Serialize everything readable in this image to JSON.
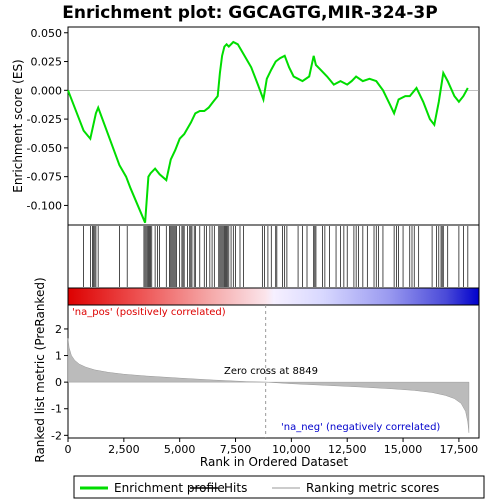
{
  "chart_data": {
    "type": "line",
    "title": "Enrichment plot: GGCAGTG,MIR-324-3P",
    "top_panel": {
      "ylabel": "Enrichment score (ES)",
      "ylim": [
        -0.117,
        0.055
      ],
      "yticks": [
        0.05,
        0.025,
        0.0,
        -0.025,
        -0.05,
        -0.075,
        -0.1
      ],
      "ytick_labels": [
        "0.050",
        "0.025",
        "0.000",
        "-0.025",
        "-0.050",
        "-0.075",
        "-0.100"
      ],
      "series": [
        {
          "name": "Enrichment profile",
          "color": "#00dd00",
          "x": [
            0,
            700,
            1000,
            1250,
            1350,
            2300,
            2600,
            2800,
            3450,
            3600,
            3700,
            3900,
            4100,
            4400,
            4600,
            4800,
            5000,
            5200,
            5500,
            5700,
            5900,
            6100,
            6300,
            6500,
            6700,
            6800,
            6900,
            7000,
            7100,
            7200,
            7400,
            7600,
            7900,
            8200,
            8500,
            8750,
            8900,
            9100,
            9300,
            9500,
            9700,
            9900,
            10100,
            10300,
            10500,
            10800,
            11000,
            11100,
            11300,
            11600,
            11900,
            12200,
            12500,
            12700,
            12900,
            13200,
            13500,
            13800,
            14100,
            14400,
            14600,
            14800,
            15100,
            15300,
            15600,
            15900,
            16200,
            16400,
            16600,
            16800,
            17000,
            17300,
            17500,
            17700,
            17900
          ],
          "y": [
            0.0,
            -0.035,
            -0.042,
            -0.02,
            -0.015,
            -0.065,
            -0.075,
            -0.085,
            -0.115,
            -0.075,
            -0.072,
            -0.068,
            -0.073,
            -0.078,
            -0.06,
            -0.052,
            -0.042,
            -0.038,
            -0.028,
            -0.02,
            -0.018,
            -0.018,
            -0.015,
            -0.01,
            -0.005,
            0.015,
            0.03,
            0.038,
            0.04,
            0.038,
            0.042,
            0.04,
            0.03,
            0.02,
            0.005,
            -0.008,
            0.01,
            0.018,
            0.025,
            0.028,
            0.03,
            0.02,
            0.012,
            0.01,
            0.008,
            0.012,
            0.03,
            0.022,
            0.018,
            0.012,
            0.005,
            0.008,
            0.005,
            0.008,
            0.012,
            0.008,
            0.01,
            0.008,
            0.0,
            -0.012,
            -0.02,
            -0.008,
            -0.005,
            -0.005,
            0.002,
            -0.01,
            -0.025,
            -0.03,
            -0.01,
            0.015,
            0.008,
            -0.005,
            -0.01,
            -0.005,
            0.002
          ]
        }
      ]
    },
    "hits": [
      700,
      1000,
      1100,
      1150,
      1200,
      1250,
      1350,
      2300,
      2650,
      3400,
      3450,
      3500,
      3550,
      3600,
      3650,
      3700,
      3750,
      3900,
      4000,
      4100,
      4400,
      4550,
      4600,
      4650,
      4700,
      4750,
      4800,
      4850,
      5000,
      5100,
      5150,
      5200,
      5350,
      5450,
      5500,
      5550,
      5650,
      5700,
      5900,
      6100,
      6200,
      6350,
      6450,
      6550,
      6750,
      6800,
      6850,
      6900,
      6950,
      7000,
      7050,
      7100,
      7150,
      7200,
      7300,
      7400,
      7500,
      7700,
      7850,
      8700,
      8800,
      8950,
      9100,
      9300,
      9350,
      9600,
      9700,
      9800,
      10300,
      10500,
      10700,
      11000,
      11050,
      11100,
      11400,
      11500,
      11700,
      12000,
      12200,
      12350,
      12500,
      12800,
      12900,
      13000,
      13200,
      13400,
      13700,
      13800,
      13900,
      14100,
      14600,
      14700,
      14800,
      15000,
      15300,
      15400,
      15500,
      15700,
      16300,
      16500,
      16600,
      16700,
      16750,
      16800,
      17000,
      17500,
      17700,
      17900
    ],
    "bottom_panel": {
      "ylabel": "Ranked list metric (PreRanked)",
      "xlabel": "Rank in Ordered Dataset",
      "ylim": [
        -2.1,
        2.9
      ],
      "yticks": [
        2,
        1,
        0,
        -1,
        -2
      ],
      "ytick_labels": [
        "2",
        "1",
        "0",
        "-1",
        "-2"
      ],
      "metric_curve": {
        "x": [
          0,
          50,
          150,
          300,
          500,
          800,
          1200,
          1800,
          2500,
          3500,
          5000,
          6500,
          8000,
          8849,
          10000,
          11500,
          13000,
          14500,
          15500,
          16300,
          16900,
          17300,
          17600,
          17800,
          17900,
          17950
        ],
        "y": [
          1.65,
          1.3,
          1.0,
          0.82,
          0.68,
          0.56,
          0.46,
          0.37,
          0.3,
          0.23,
          0.15,
          0.08,
          0.02,
          0.0,
          -0.06,
          -0.12,
          -0.18,
          -0.25,
          -0.31,
          -0.39,
          -0.5,
          -0.62,
          -0.8,
          -1.1,
          -1.5,
          -1.9
        ]
      },
      "zero_cross_label": "Zero cross at 8849",
      "zero_cross": 8849,
      "pos_label": "'na_pos' (positively correlated)",
      "neg_label": "'na_neg' (negatively correlated)",
      "pos_color": "#dd0000",
      "neg_color": "#0000cc"
    },
    "x_axis": {
      "xlim": [
        0,
        18400
      ],
      "xticks": [
        0,
        2500,
        5000,
        7500,
        10000,
        12500,
        15000,
        17500
      ],
      "xtick_labels": [
        "0",
        "2,500",
        "5,000",
        "7,500",
        "10,000",
        "12,500",
        "15,000",
        "17,500"
      ]
    },
    "legend": {
      "placement": "bottom",
      "items": [
        {
          "label": "Enrichment profile",
          "color": "#00dd00",
          "kind": "line"
        },
        {
          "label": "Hits",
          "color": "#000000",
          "kind": "line"
        },
        {
          "label": "Ranking metric scores",
          "color": "#bbbbbb",
          "kind": "line"
        }
      ]
    }
  }
}
